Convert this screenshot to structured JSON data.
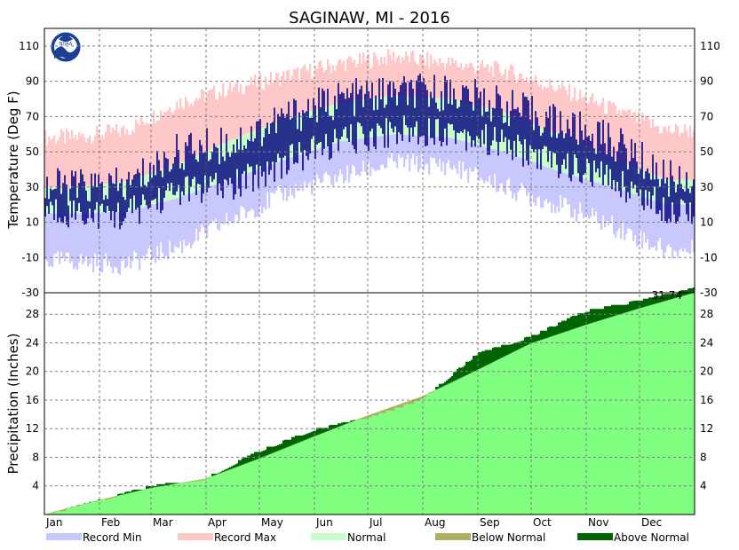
{
  "chart_data": [
    {
      "type": "bar",
      "title": "SAGINAW, MI - 2016",
      "ylabel": "Temperature (Deg F)",
      "ylim": [
        -30,
        120
      ],
      "yticks": [
        110,
        90,
        70,
        50,
        30,
        10,
        -10,
        -30
      ],
      "months": [
        "Jan",
        "Feb",
        "Mar",
        "Apr",
        "May",
        "Jun",
        "Jul",
        "Aug",
        "Sep",
        "Oct",
        "Nov",
        "Dec"
      ],
      "month_start_day": [
        1,
        32,
        61,
        92,
        122,
        153,
        183,
        214,
        245,
        275,
        306,
        336
      ],
      "days_in_year": 366,
      "grid": true,
      "normal_high_monthly": [
        30,
        33,
        43,
        57,
        69,
        78,
        82,
        80,
        72,
        60,
        46,
        34
      ],
      "normal_low_monthly": [
        15,
        16,
        24,
        35,
        46,
        56,
        60,
        58,
        50,
        39,
        30,
        20
      ],
      "record_high_monthly": [
        58,
        62,
        78,
        86,
        93,
        100,
        104,
        100,
        96,
        86,
        74,
        62
      ],
      "record_low_monthly": [
        -12,
        -14,
        -4,
        12,
        27,
        36,
        44,
        42,
        30,
        20,
        8,
        -6
      ],
      "actual_high_monthly": [
        30,
        30,
        50,
        55,
        70,
        80,
        83,
        84,
        76,
        66,
        56,
        35
      ],
      "actual_low_monthly": [
        16,
        14,
        28,
        30,
        45,
        56,
        62,
        62,
        54,
        43,
        34,
        18
      ],
      "colors": {
        "record_min": "#c8c8ff",
        "record_max": "#ffc8c8",
        "normal": "#c8ffc8",
        "actual": "#00007f",
        "grid": "#7f7f7f"
      }
    },
    {
      "type": "area",
      "ylabel": "Precipitation (Inches)",
      "ylim": [
        0,
        31
      ],
      "yticks": [
        28,
        24,
        20,
        16,
        12,
        8,
        4
      ],
      "ytick_top": "-30",
      "total_label": "31.74",
      "normal_monthly_end": [
        2.0,
        3.7,
        5.0,
        7.8,
        10.9,
        13.8,
        16.5,
        20.2,
        23.9,
        26.5,
        28.8,
        31.0
      ],
      "actual_monthly_end": [
        2.1,
        4.1,
        5.2,
        9.0,
        12.0,
        13.6,
        16.2,
        22.6,
        25.0,
        28.6,
        30.0,
        31.74
      ],
      "colors": {
        "normal": "#80ff80",
        "below": "#afaf5f",
        "above": "#006400"
      }
    }
  ],
  "legend": [
    {
      "label": "Record Min",
      "color": "#c8c8ff"
    },
    {
      "label": "Record Max",
      "color": "#ffc8c8"
    },
    {
      "label": "Normal",
      "color": "#c8ffc8"
    },
    {
      "label": "Below Normal",
      "color": "#afaf5f"
    },
    {
      "label": "Above Normal",
      "color": "#006400"
    }
  ],
  "logo": {
    "text": "NOAA"
  }
}
